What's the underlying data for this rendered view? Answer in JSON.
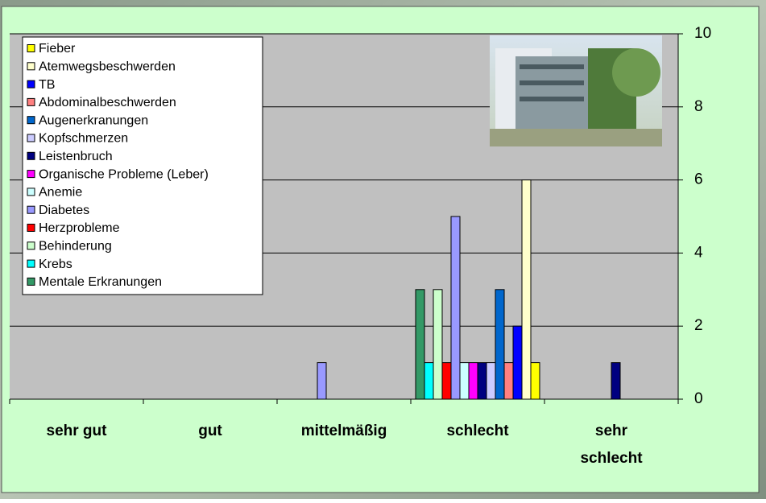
{
  "chart_data": {
    "type": "bar",
    "categories": [
      "sehr gut",
      "gut",
      "mittelmäßig",
      "schlecht",
      "sehr schlecht"
    ],
    "series": [
      {
        "name": "Fieber",
        "color": "#ffff00",
        "values": [
          0,
          0,
          0,
          1,
          0
        ]
      },
      {
        "name": "Atemwegsbeschwerden",
        "color": "#ffffcc",
        "values": [
          0,
          0,
          0,
          6,
          0
        ]
      },
      {
        "name": "TB",
        "color": "#0000ff",
        "values": [
          0,
          0,
          0,
          2,
          0
        ]
      },
      {
        "name": "Abdominalbeschwerden",
        "color": "#ff8080",
        "values": [
          0,
          0,
          0,
          1,
          0
        ]
      },
      {
        "name": "Augenerkranungen",
        "color": "#0066cc",
        "values": [
          0,
          0,
          0,
          3,
          0
        ]
      },
      {
        "name": "Kopfschmerzen",
        "color": "#ccccff",
        "values": [
          0,
          0,
          0,
          1,
          0
        ]
      },
      {
        "name": "Leistenbruch",
        "color": "#000080",
        "values": [
          0,
          0,
          0,
          1,
          1
        ]
      },
      {
        "name": "Organische Probleme (Leber)",
        "color": "#ff00ff",
        "values": [
          0,
          0,
          0,
          1,
          0
        ]
      },
      {
        "name": "Anemie",
        "color": "#ccffff",
        "values": [
          0,
          0,
          0,
          1,
          0
        ]
      },
      {
        "name": "Diabetes",
        "color": "#9999ff",
        "values": [
          0,
          0,
          1,
          5,
          0
        ]
      },
      {
        "name": "Herzprobleme",
        "color": "#ff0000",
        "values": [
          0,
          0,
          0,
          1,
          0
        ]
      },
      {
        "name": "Behinderung",
        "color": "#ccffcc",
        "values": [
          0,
          0,
          0,
          3,
          0
        ]
      },
      {
        "name": "Krebs",
        "color": "#00ffff",
        "values": [
          0,
          0,
          0,
          1,
          0
        ]
      },
      {
        "name": "Mentale Erkranungen",
        "color": "#339966",
        "values": [
          0,
          0,
          0,
          3,
          0
        ]
      }
    ],
    "ylim": [
      0,
      10
    ],
    "yticks": [
      0,
      2,
      4,
      6,
      8,
      10
    ],
    "grid": true,
    "y_axis_side": "right",
    "legend": "top-left"
  }
}
